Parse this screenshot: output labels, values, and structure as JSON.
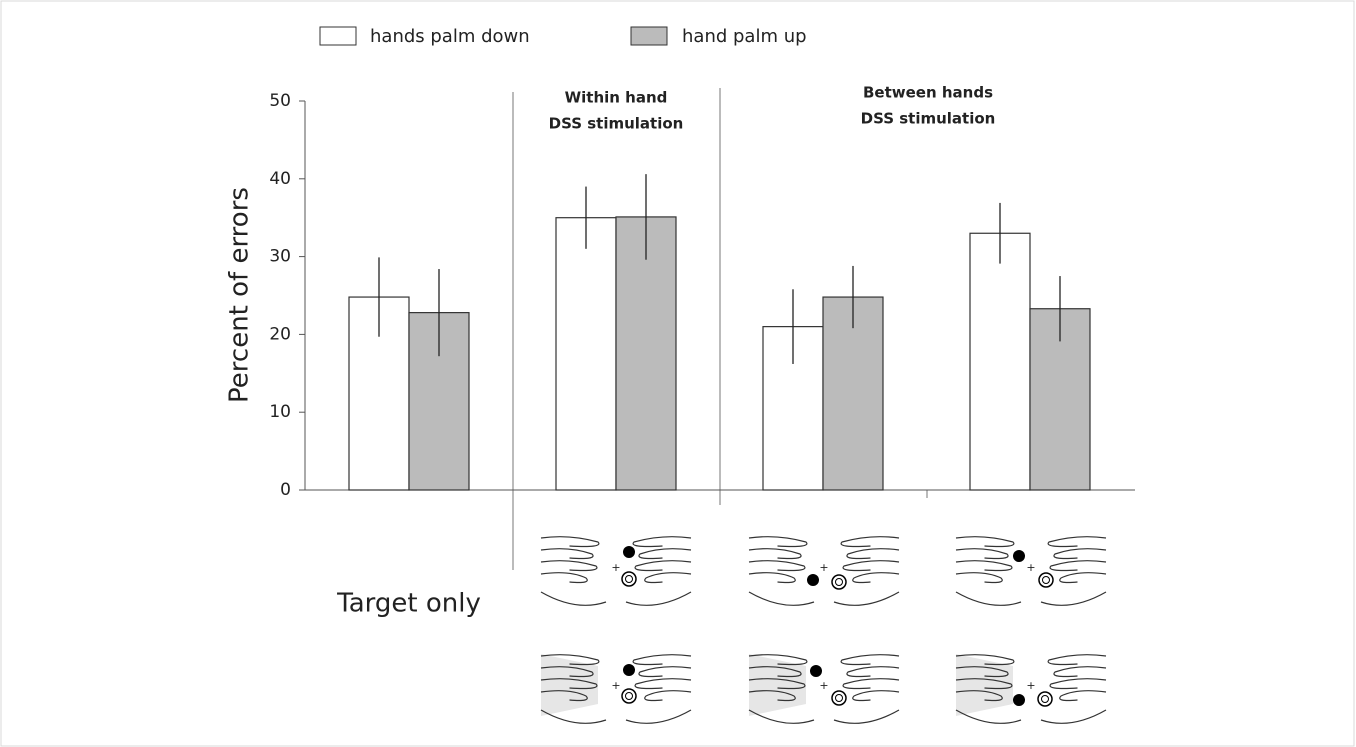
{
  "chart_data": {
    "type": "bar",
    "y_label": "Percent of errors",
    "annotations": [
      [
        "Within hand",
        "DSS stimulation"
      ],
      [
        "Between hands",
        "DSS stimulation"
      ]
    ],
    "categories": [
      "Target only",
      null,
      null,
      null
    ],
    "series": [
      {
        "name": "hands palm down",
        "color": "#ffffff",
        "values": [
          24.8,
          35.0,
          21.0,
          33.0
        ],
        "errors": [
          5.1,
          4.0,
          4.8,
          3.9
        ]
      },
      {
        "name": "hand palm up",
        "color": "#bbbbbb",
        "values": [
          22.8,
          35.1,
          24.8,
          23.3
        ],
        "errors": [
          5.6,
          5.5,
          4.0,
          4.2
        ]
      }
    ],
    "ylim": [
      0,
      50
    ],
    "yticks": [
      0,
      10,
      20,
      30,
      40,
      50
    ]
  }
}
